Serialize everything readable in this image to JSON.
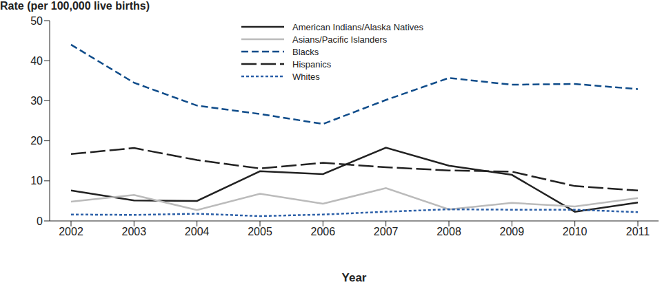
{
  "chart_data": {
    "type": "line",
    "y_label": "Rate (per 100,000 live births)",
    "x_label": "Year",
    "categories": [
      "2002",
      "2003",
      "2004",
      "2005",
      "2006",
      "2007",
      "2008",
      "2009",
      "2010",
      "2011"
    ],
    "series": [
      {
        "name": "American Indians/Alaska Natives",
        "color": "#222222",
        "line_style": "solid",
        "values": [
          7.6,
          5.1,
          5.0,
          12.4,
          11.7,
          18.3,
          13.8,
          11.5,
          2.3,
          4.6
        ]
      },
      {
        "name": "Asians/Pacific Islanders",
        "color": "#bbbbbb",
        "line_style": "solid",
        "values": [
          4.8,
          6.5,
          2.7,
          6.8,
          4.3,
          8.2,
          2.9,
          4.5,
          3.6,
          5.7
        ]
      },
      {
        "name": "Blacks",
        "color": "#0f4c8a",
        "line_style": "dashed",
        "values": [
          44.0,
          34.5,
          28.8,
          26.7,
          24.2,
          30.2,
          35.7,
          34.0,
          34.2,
          32.9
        ]
      },
      {
        "name": "Hispanics",
        "color": "#222222",
        "line_style": "longdash",
        "values": [
          16.7,
          18.2,
          15.2,
          13.1,
          14.5,
          13.4,
          12.6,
          12.3,
          8.7,
          7.6
        ]
      },
      {
        "name": "Whites",
        "color": "#2b5fa8",
        "line_style": "dotted",
        "values": [
          1.6,
          1.5,
          1.8,
          1.2,
          1.6,
          2.3,
          2.9,
          2.8,
          2.8,
          2.2
        ]
      }
    ],
    "ylim": [
      0,
      50
    ],
    "yticks": [
      0,
      10,
      20,
      30,
      40,
      50
    ],
    "grid": false,
    "legend": "top"
  }
}
